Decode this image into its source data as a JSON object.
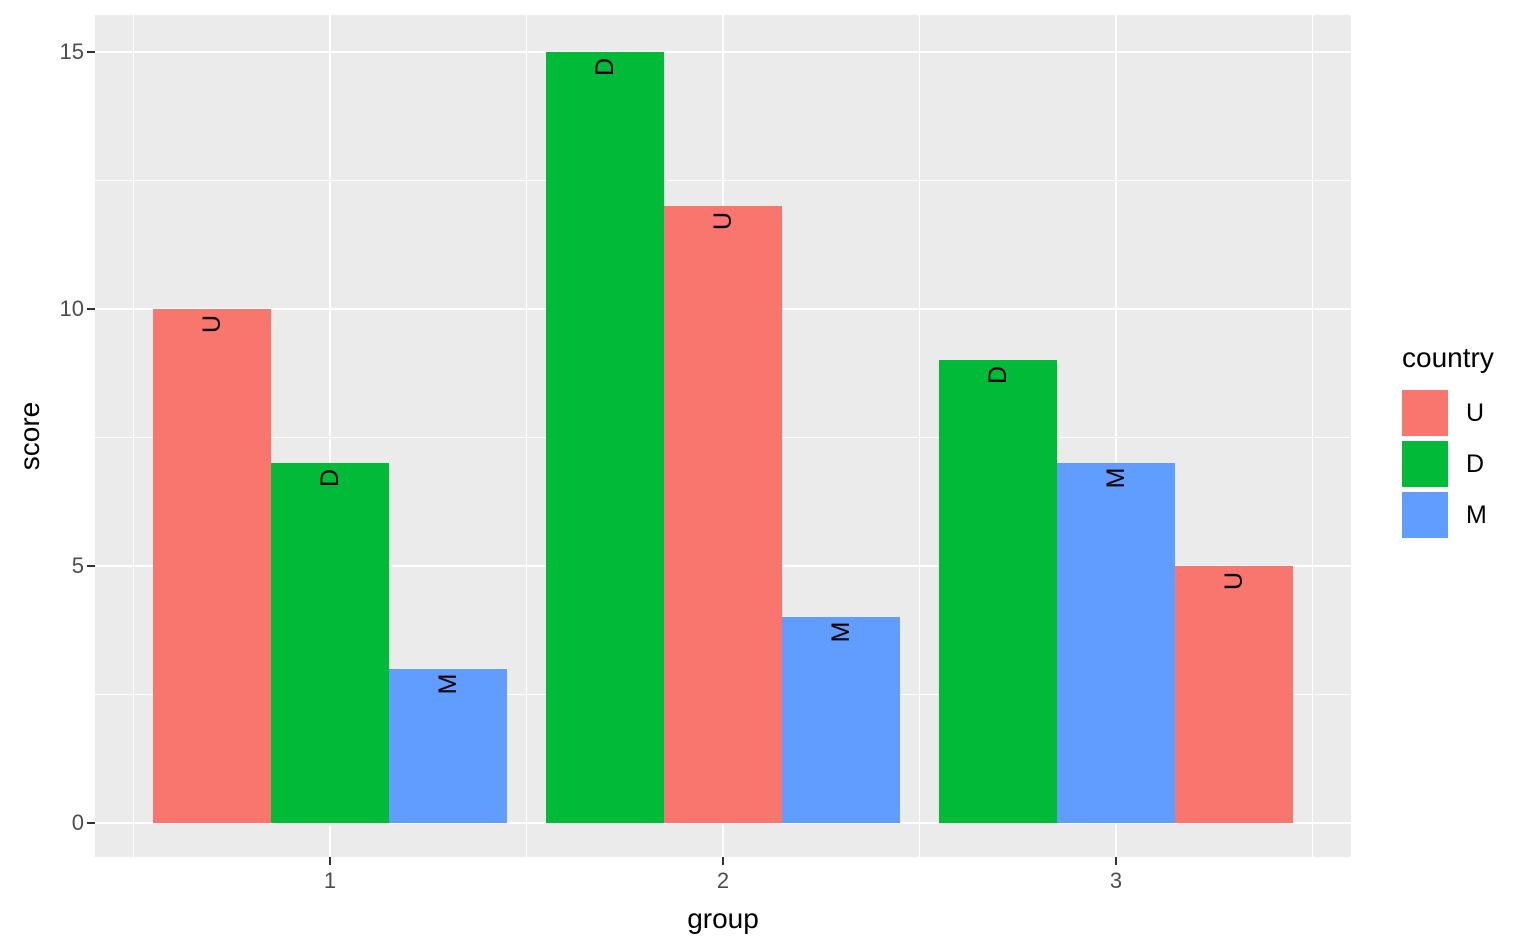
{
  "chart_data": {
    "type": "bar",
    "title": "",
    "xlabel": "group",
    "ylabel": "score",
    "x_tick_labels": [
      "1",
      "2",
      "3"
    ],
    "y_major_ticks": [
      0,
      5,
      10,
      15
    ],
    "y_minor_ticks": [
      2.5,
      7.5,
      12.5
    ],
    "ylim": [
      0,
      15
    ],
    "grid": "major and minor white gridlines on gray panel",
    "legend_position": "right",
    "bar_label_rotation_deg": 90,
    "colors": {
      "U": "#F8766D",
      "D": "#00BA38",
      "M": "#619CFF"
    },
    "groups": [
      {
        "category": "1",
        "bars": [
          {
            "country": "U",
            "value": 10
          },
          {
            "country": "D",
            "value": 7
          },
          {
            "country": "M",
            "value": 3
          }
        ]
      },
      {
        "category": "2",
        "bars": [
          {
            "country": "D",
            "value": 15
          },
          {
            "country": "U",
            "value": 12
          },
          {
            "country": "M",
            "value": 4
          }
        ]
      },
      {
        "category": "3",
        "bars": [
          {
            "country": "D",
            "value": 9
          },
          {
            "country": "M",
            "value": 7
          },
          {
            "country": "U",
            "value": 5
          }
        ]
      }
    ],
    "series": [
      {
        "name": "U",
        "values": [
          10,
          12,
          5
        ]
      },
      {
        "name": "D",
        "values": [
          7,
          15,
          9
        ]
      },
      {
        "name": "M",
        "values": [
          3,
          4,
          7
        ]
      }
    ],
    "legend": {
      "title": "country",
      "entries": [
        "U",
        "D",
        "M"
      ]
    }
  },
  "style": {
    "background": "#FFFFFF",
    "panel_bg": "#EBEBEB",
    "grid_color": "#FFFFFF",
    "axis_text_color": "#4D4D4D",
    "axis_title_color": "#000000",
    "bar_label_color": "#000000",
    "tick_mark_color": "#333333"
  }
}
